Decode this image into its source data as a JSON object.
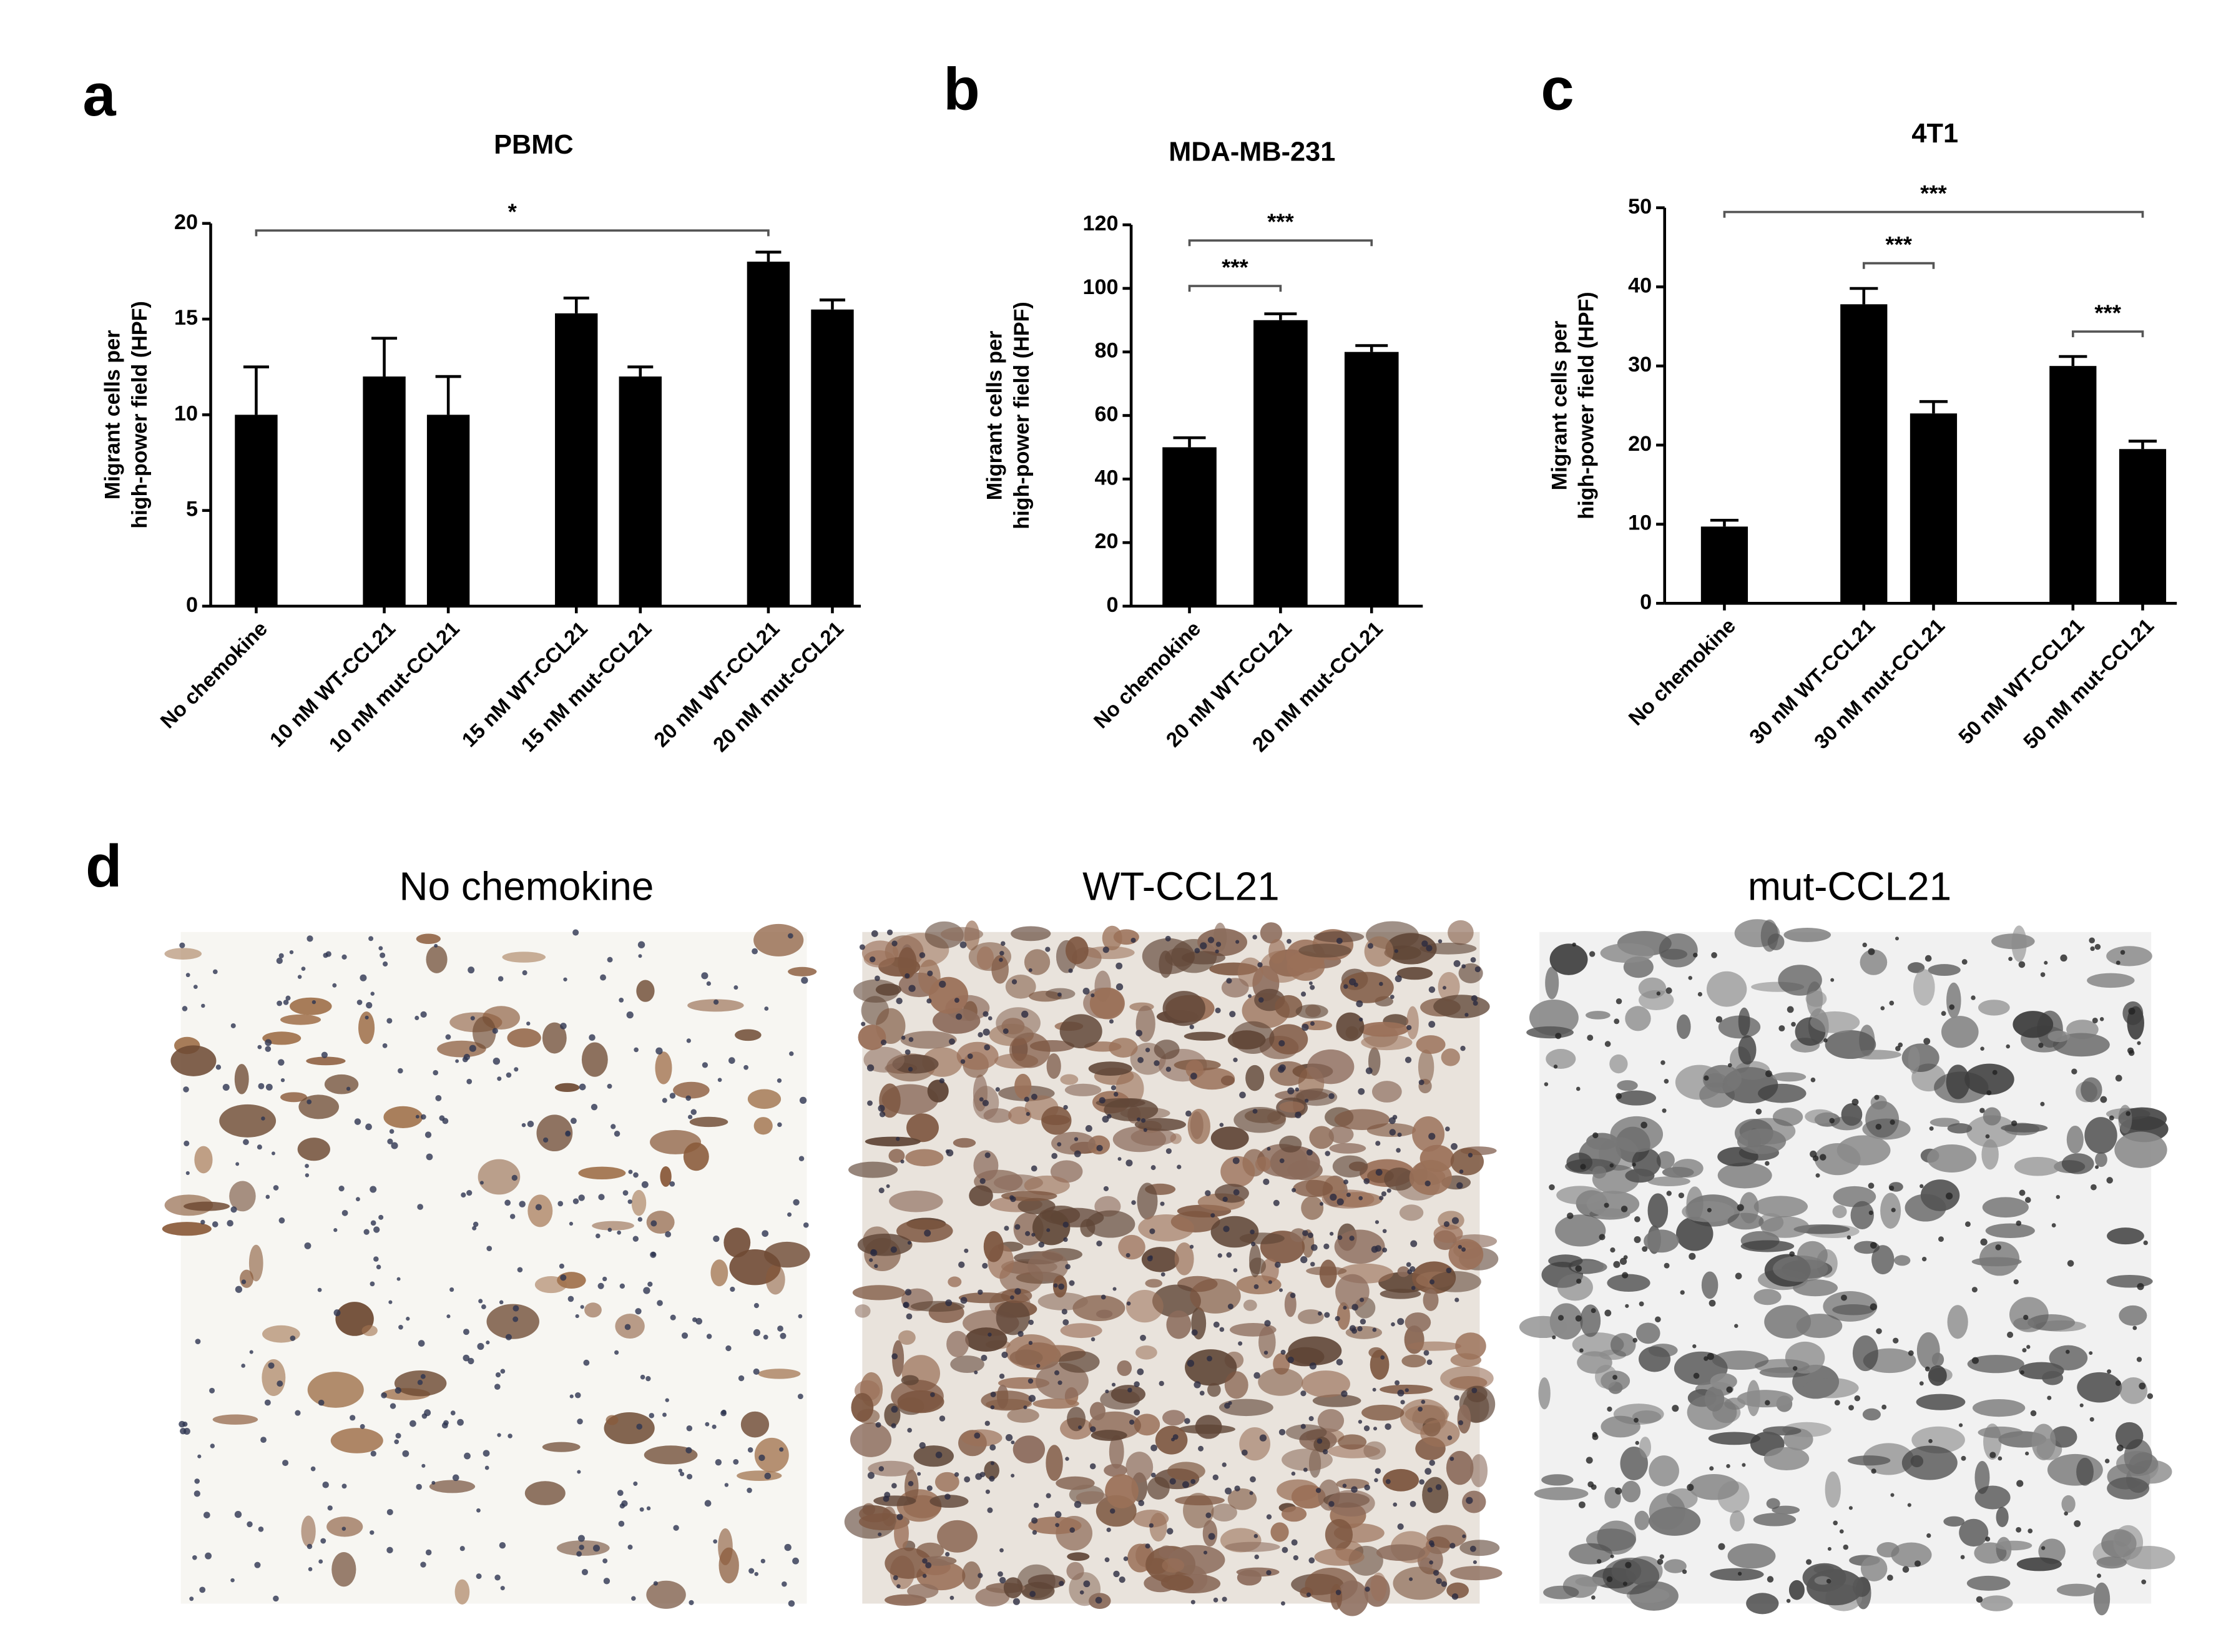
{
  "chart_data": [
    {
      "type": "bar",
      "panel_label": "a",
      "title": "PBMC",
      "y_label": [
        "Migrant cells per",
        "high-power field (HPF)"
      ],
      "categories": [
        "No chemokine",
        null,
        "10 nM WT-CCL21",
        "10 nM mut-CCL21",
        null,
        "15 nM WT-CCL21",
        "15 nM mut-CCL21",
        null,
        "20 nM WT-CCL21",
        "20 nM mut-CCL21"
      ],
      "values": [
        10,
        null,
        12,
        10,
        null,
        15.3,
        12,
        null,
        18,
        15.5
      ],
      "errors": [
        2.5,
        null,
        2,
        2,
        null,
        0.8,
        0.5,
        null,
        0.5,
        0.5
      ],
      "color": "#000000",
      "ylim": [
        0,
        20
      ],
      "yticks": [
        0,
        5,
        10,
        15,
        20
      ],
      "annotations": [
        {
          "text": "*",
          "from": 0,
          "to": 8
        }
      ]
    },
    {
      "type": "bar",
      "panel_label": "b",
      "title": "MDA-MB-231",
      "y_label": [
        "Migrant cells per",
        "high-power field (HPF)"
      ],
      "categories": [
        "No chemokine",
        "20 nM WT-CCL21",
        "20 nM mut-CCL21"
      ],
      "values": [
        50,
        90,
        80
      ],
      "errors": [
        3,
        2,
        2
      ],
      "color": "#000000",
      "ylim": [
        0,
        120
      ],
      "yticks": [
        0,
        20,
        40,
        60,
        80,
        100,
        120
      ],
      "annotations": [
        {
          "text": "***",
          "from": 0,
          "to": 2
        },
        {
          "text": "***",
          "from": 0,
          "to": 1
        }
      ]
    },
    {
      "type": "bar",
      "panel_label": "c",
      "title": "4T1",
      "y_label": [
        "Migrant cells per",
        "high-power field (HPF)"
      ],
      "categories": [
        "No chemokine",
        null,
        "30 nM WT-CCL21",
        "30 nM mut-CCL21",
        null,
        "50 nM WT-CCL21",
        "50 nM mut-CCL21"
      ],
      "values": [
        9.7,
        null,
        37.8,
        24,
        null,
        30,
        19.5
      ],
      "errors": [
        0.8,
        null,
        2,
        1.5,
        null,
        1.2,
        1
      ],
      "color": "#000000",
      "ylim": [
        0,
        50
      ],
      "yticks": [
        0,
        10,
        20,
        30,
        40,
        50
      ],
      "annotations": [
        {
          "text": "***",
          "from": 0,
          "to": 6
        },
        {
          "text": "***",
          "from": 2,
          "to": 3
        },
        {
          "text": "***",
          "from": 5,
          "to": 6
        }
      ]
    }
  ],
  "panel_d": {
    "panel_label": "d",
    "image_titles": [
      "No chemokine",
      "WT-CCL21",
      "mut-CCL21"
    ]
  }
}
